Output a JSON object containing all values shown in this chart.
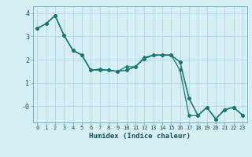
{
  "xlabel": "Humidex (Indice chaleur)",
  "background_color": "#d6eff5",
  "grid_color": "#b0d8e0",
  "line_color": "#1a7870",
  "x_ticks": [
    0,
    1,
    2,
    3,
    4,
    5,
    6,
    7,
    8,
    9,
    10,
    11,
    12,
    13,
    14,
    15,
    16,
    17,
    18,
    19,
    20,
    21,
    22,
    23
  ],
  "ylim": [
    -0.7,
    4.3
  ],
  "xlim": [
    -0.5,
    23.5
  ],
  "series": [
    [
      3.35,
      3.55,
      3.9,
      3.05,
      2.4,
      2.2,
      1.55,
      1.55,
      1.55,
      1.5,
      1.55,
      1.7,
      2.05,
      2.2,
      2.2,
      2.2,
      1.9,
      0.35,
      -0.4,
      -0.05,
      -0.55,
      -0.15,
      -0.05,
      -0.38
    ],
    [
      3.35,
      3.55,
      3.9,
      3.05,
      2.4,
      2.2,
      1.55,
      1.55,
      1.55,
      1.5,
      1.55,
      1.7,
      2.05,
      2.2,
      2.2,
      2.2,
      1.55,
      -0.4,
      -0.4,
      -0.05,
      -0.55,
      -0.15,
      -0.05,
      -0.38
    ],
    [
      3.35,
      3.55,
      3.9,
      3.05,
      2.4,
      2.2,
      1.55,
      1.6,
      1.55,
      1.5,
      1.7,
      1.7,
      2.1,
      2.2,
      2.2,
      2.2,
      1.9,
      0.35,
      -0.4,
      -0.05,
      -0.55,
      -0.15,
      -0.05,
      -0.38
    ]
  ]
}
